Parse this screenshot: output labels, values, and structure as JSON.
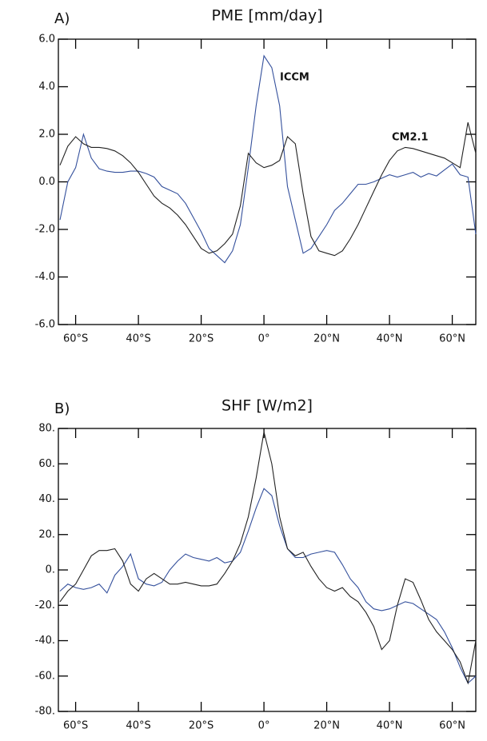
{
  "chart_data": [
    {
      "type": "line",
      "title": "PME [mm/day]",
      "panel_label": "A)",
      "x": [
        -65,
        -62.5,
        -60,
        -57.5,
        -55,
        -52.5,
        -50,
        -47.5,
        -45,
        -42.5,
        -40,
        -37.5,
        -35,
        -32.5,
        -30,
        -27.5,
        -25,
        -22.5,
        -20,
        -17.5,
        -15,
        -12.5,
        -10,
        -7.5,
        -5,
        -2.5,
        0,
        2.5,
        5,
        7.5,
        10,
        12.5,
        15,
        17.5,
        20,
        22.5,
        25,
        27.5,
        30,
        32.5,
        35,
        37.5,
        40,
        42.5,
        45,
        47.5,
        50,
        52.5,
        55,
        57.5,
        60,
        62.5,
        65,
        67.5
      ],
      "xlim": [
        -65.5,
        67.5
      ],
      "xticks": [
        {
          "value": -60,
          "label": "60°S"
        },
        {
          "value": -40,
          "label": "40°S"
        },
        {
          "value": -20,
          "label": "20°S"
        },
        {
          "value": 0,
          "label": "0°"
        },
        {
          "value": 20,
          "label": "20°N"
        },
        {
          "value": 40,
          "label": "40°N"
        },
        {
          "value": 60,
          "label": "60°N"
        }
      ],
      "ylim": [
        -6,
        6
      ],
      "yticks": [
        {
          "value": 6,
          "label": "6.0"
        },
        {
          "value": 4,
          "label": "4.0"
        },
        {
          "value": 2,
          "label": "2.0"
        },
        {
          "value": 0,
          "label": "0.0"
        },
        {
          "value": -2,
          "label": "-2.0"
        },
        {
          "value": -4,
          "label": "-4.0"
        },
        {
          "value": -6,
          "label": "-6.0"
        }
      ],
      "series": [
        {
          "name": "ICCM",
          "color": "#34509c",
          "values": [
            -1.6,
            0.0,
            0.6,
            2.0,
            1.0,
            0.55,
            0.45,
            0.4,
            0.4,
            0.45,
            0.45,
            0.35,
            0.2,
            -0.2,
            -0.35,
            -0.5,
            -0.9,
            -1.5,
            -2.1,
            -2.8,
            -3.1,
            -3.4,
            -2.9,
            -1.8,
            0.6,
            3.2,
            5.3,
            4.8,
            3.2,
            -0.2,
            -1.6,
            -3.0,
            -2.8,
            -2.3,
            -1.8,
            -1.2,
            -0.9,
            -0.5,
            -0.1,
            -0.1,
            0.0,
            0.15,
            0.3,
            0.2,
            0.3,
            0.4,
            0.2,
            0.35,
            0.25,
            0.5,
            0.75,
            0.3,
            0.2,
            -2.2
          ]
        },
        {
          "name": "CM2.1",
          "color": "#222222",
          "values": [
            0.7,
            1.5,
            1.9,
            1.6,
            1.45,
            1.45,
            1.4,
            1.3,
            1.1,
            0.8,
            0.4,
            -0.1,
            -0.6,
            -0.9,
            -1.1,
            -1.4,
            -1.8,
            -2.3,
            -2.8,
            -3.0,
            -2.9,
            -2.6,
            -2.2,
            -1.0,
            1.2,
            0.8,
            0.6,
            0.7,
            0.9,
            1.9,
            1.6,
            -0.5,
            -2.3,
            -2.9,
            -3.0,
            -3.1,
            -2.9,
            -2.4,
            -1.8,
            -1.1,
            -0.4,
            0.3,
            0.9,
            1.3,
            1.45,
            1.4,
            1.3,
            1.2,
            1.1,
            1.0,
            0.8,
            0.6,
            2.5,
            1.2
          ]
        }
      ]
    },
    {
      "type": "line",
      "title": "SHF [W/m2]",
      "panel_label": "B)",
      "x": [
        -65,
        -62.5,
        -60,
        -57.5,
        -55,
        -52.5,
        -50,
        -47.5,
        -45,
        -42.5,
        -40,
        -37.5,
        -35,
        -32.5,
        -30,
        -27.5,
        -25,
        -22.5,
        -20,
        -17.5,
        -15,
        -12.5,
        -10,
        -7.5,
        -5,
        -2.5,
        0,
        2.5,
        5,
        7.5,
        10,
        12.5,
        15,
        17.5,
        20,
        22.5,
        25,
        27.5,
        30,
        32.5,
        35,
        37.5,
        40,
        42.5,
        45,
        47.5,
        50,
        52.5,
        55,
        57.5,
        60,
        62.5,
        65,
        67.5
      ],
      "xlim": [
        -65.5,
        67.5
      ],
      "xticks": [
        {
          "value": -60,
          "label": "60°S"
        },
        {
          "value": -40,
          "label": "40°S"
        },
        {
          "value": -20,
          "label": "20°S"
        },
        {
          "value": 0,
          "label": "0°"
        },
        {
          "value": 20,
          "label": "20°N"
        },
        {
          "value": 40,
          "label": "40°N"
        },
        {
          "value": 60,
          "label": "60°N"
        }
      ],
      "ylim": [
        -80,
        80
      ],
      "yticks": [
        {
          "value": 80,
          "label": "80."
        },
        {
          "value": 60,
          "label": "60."
        },
        {
          "value": 40,
          "label": "40."
        },
        {
          "value": 20,
          "label": "20."
        },
        {
          "value": 0,
          "label": "0."
        },
        {
          "value": -20,
          "label": "-20."
        },
        {
          "value": -40,
          "label": "-40."
        },
        {
          "value": -60,
          "label": "-60."
        },
        {
          "value": -80,
          "label": "-80."
        }
      ],
      "series": [
        {
          "color": "#34509c",
          "values": [
            -12,
            -8,
            -10,
            -11,
            -10,
            -8,
            -13,
            -3,
            2,
            9,
            -5,
            -8,
            -9,
            -7,
            0,
            5,
            9,
            7,
            6,
            5,
            7,
            4,
            5,
            10,
            22,
            35,
            46,
            42,
            25,
            12,
            7,
            7,
            9,
            10,
            11,
            10,
            3,
            -5,
            -10,
            -18,
            -22,
            -23,
            -22,
            -20,
            -18,
            -19,
            -22,
            -25,
            -28,
            -35,
            -44,
            -55,
            -64,
            -60
          ]
        },
        {
          "color": "#222222",
          "values": [
            -18,
            -12,
            -8,
            0,
            8,
            11,
            11,
            12,
            5,
            -8,
            -12,
            -5,
            -2,
            -5,
            -8,
            -8,
            -7,
            -8,
            -9,
            -9,
            -8,
            -2,
            5,
            15,
            30,
            52,
            78,
            60,
            30,
            12,
            8,
            10,
            2,
            -5,
            -10,
            -12,
            -10,
            -15,
            -18,
            -24,
            -32,
            -45,
            -40,
            -20,
            -5,
            -7,
            -17,
            -28,
            -35,
            -40,
            -45,
            -52,
            -64,
            -40
          ]
        }
      ]
    }
  ]
}
